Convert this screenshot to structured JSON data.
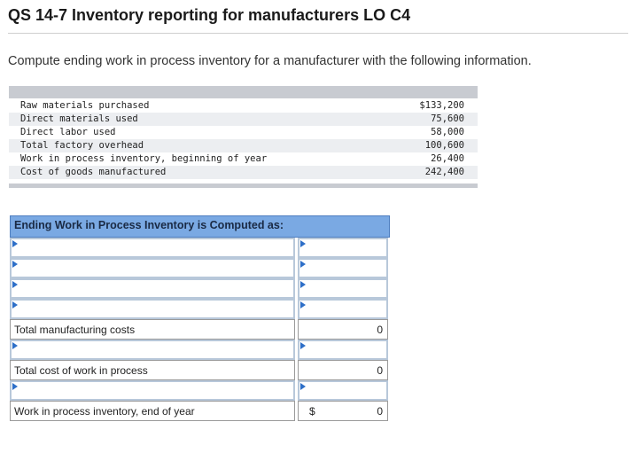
{
  "header": {
    "title": "QS 14-7 Inventory reporting for manufacturers LO C4",
    "instruction": "Compute ending work in process inventory for a manufacturer with the following information."
  },
  "info_rows": [
    {
      "label": "Raw materials purchased",
      "value": "$133,200"
    },
    {
      "label": "Direct materials used",
      "value": "75,600"
    },
    {
      "label": "Direct labor used",
      "value": "58,000"
    },
    {
      "label": "Total factory overhead",
      "value": "100,600"
    },
    {
      "label": "Work in process inventory, beginning of year",
      "value": "26,400"
    },
    {
      "label": "Cost of goods manufactured",
      "value": "242,400"
    }
  ],
  "worksheet": {
    "heading": "Ending Work in Process Inventory is Computed as:",
    "total_manufacturing_label": "Total manufacturing costs",
    "total_manufacturing_value": "0",
    "total_cost_wip_label": "Total cost of work in process",
    "total_cost_wip_value": "0",
    "wip_end_label": "Work in process inventory, end of year",
    "wip_end_currency": "$",
    "wip_end_value": "0"
  },
  "colors": {
    "header_blue": "#7aa9e3",
    "arrow_blue": "#2e6fc8",
    "info_band": "#c8cbd1"
  }
}
